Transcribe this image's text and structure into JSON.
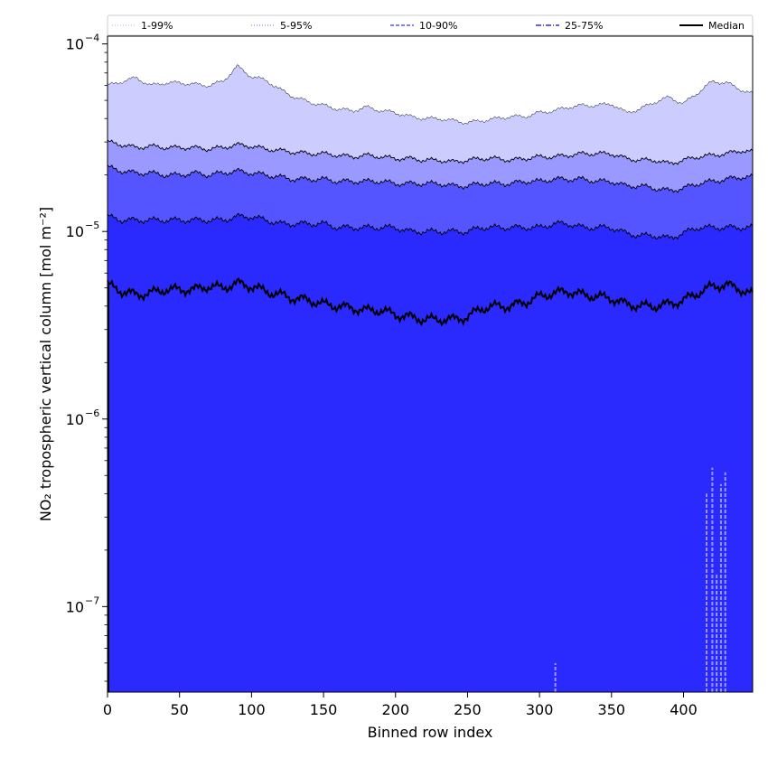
{
  "chart_data": {
    "type": "area",
    "xlabel": "Binned row index",
    "ylabel": "NO₂ tropospheric vertical column [mol m⁻²]",
    "xlim": [
      0,
      448
    ],
    "ylim": [
      3.5e-08,
      0.00011
    ],
    "yscale": "log",
    "x_ticks": [
      0,
      50,
      100,
      150,
      200,
      250,
      300,
      350,
      400
    ],
    "y_ticks": [
      {
        "value": 1e-07,
        "base": "10",
        "exp": "−7"
      },
      {
        "value": 1e-06,
        "base": "10",
        "exp": "−6"
      },
      {
        "value": 1e-05,
        "base": "10",
        "exp": "−5"
      },
      {
        "value": 0.0001,
        "base": "10",
        "exp": "−4"
      }
    ],
    "grid": false,
    "legend_position": "top (horizontal, above plot)",
    "x": [
      0,
      10,
      20,
      30,
      40,
      50,
      60,
      70,
      80,
      90,
      100,
      110,
      120,
      130,
      140,
      150,
      160,
      170,
      180,
      190,
      200,
      210,
      220,
      230,
      240,
      250,
      260,
      270,
      280,
      290,
      300,
      310,
      320,
      330,
      340,
      350,
      360,
      370,
      380,
      390,
      400,
      410,
      420,
      430,
      440,
      448
    ],
    "series": [
      {
        "name": "1-99%",
        "color": "#ccccff",
        "linestyle": "dotted",
        "upper": [
          6e-05,
          6.3e-05,
          6.6e-05,
          6e-05,
          6.2e-05,
          6.2e-05,
          6.1e-05,
          6e-05,
          6.3e-05,
          7.6e-05,
          6.7e-05,
          6.4e-05,
          5.7e-05,
          5.2e-05,
          4.9e-05,
          4.7e-05,
          4.5e-05,
          4.4e-05,
          4.6e-05,
          4.4e-05,
          4.3e-05,
          4.1e-05,
          4e-05,
          4e-05,
          3.9e-05,
          3.8e-05,
          3.9e-05,
          4e-05,
          4.1e-05,
          4.1e-05,
          4.3e-05,
          4.4e-05,
          4.6e-05,
          4.7e-05,
          4.7e-05,
          4.8e-05,
          4.3e-05,
          4.5e-05,
          4.9e-05,
          5.2e-05,
          4.8e-05,
          5.5e-05,
          6.3e-05,
          6.2e-05,
          5.7e-05,
          5.4e-05
        ]
      },
      {
        "name": "5-95%",
        "color": "#9999ff",
        "linestyle": "dotted",
        "upper": [
          3e-05,
          2.9e-05,
          2.8e-05,
          2.85e-05,
          2.8e-05,
          2.8e-05,
          2.8e-05,
          2.75e-05,
          2.8e-05,
          2.9e-05,
          2.85e-05,
          2.75e-05,
          2.7e-05,
          2.65e-05,
          2.6e-05,
          2.6e-05,
          2.55e-05,
          2.5e-05,
          2.55e-05,
          2.5e-05,
          2.45e-05,
          2.45e-05,
          2.4e-05,
          2.4e-05,
          2.35e-05,
          2.4e-05,
          2.45e-05,
          2.45e-05,
          2.4e-05,
          2.45e-05,
          2.5e-05,
          2.5e-05,
          2.55e-05,
          2.6e-05,
          2.6e-05,
          2.6e-05,
          2.45e-05,
          2.4e-05,
          2.4e-05,
          2.3e-05,
          2.4e-05,
          2.5e-05,
          2.55e-05,
          2.6e-05,
          2.7e-05,
          2.65e-05
        ]
      },
      {
        "name": "10-90%",
        "color": "#5555ff",
        "linestyle": "dashed",
        "upper": [
          2.2e-05,
          2.1e-05,
          2.05e-05,
          2.05e-05,
          2e-05,
          2e-05,
          2.05e-05,
          2e-05,
          2.05e-05,
          2.1e-05,
          2.05e-05,
          2e-05,
          1.95e-05,
          1.9e-05,
          1.9e-05,
          1.9e-05,
          1.85e-05,
          1.85e-05,
          1.85e-05,
          1.85e-05,
          1.8e-05,
          1.8e-05,
          1.8e-05,
          1.8e-05,
          1.75e-05,
          1.75e-05,
          1.8e-05,
          1.8e-05,
          1.8e-05,
          1.85e-05,
          1.85e-05,
          1.9e-05,
          1.9e-05,
          1.9e-05,
          1.85e-05,
          1.85e-05,
          1.75e-05,
          1.75e-05,
          1.7e-05,
          1.65e-05,
          1.7e-05,
          1.8e-05,
          1.85e-05,
          1.9e-05,
          1.95e-05,
          1.95e-05
        ]
      },
      {
        "name": "25-75%",
        "color": "#2a2aff",
        "linestyle": "dashdot",
        "upper": [
          1.2e-05,
          1.15e-05,
          1.15e-05,
          1.15e-05,
          1.15e-05,
          1.15e-05,
          1.15e-05,
          1.15e-05,
          1.15e-05,
          1.2e-05,
          1.2e-05,
          1.15e-05,
          1.1e-05,
          1.1e-05,
          1.1e-05,
          1.1e-05,
          1.05e-05,
          1.05e-05,
          1.05e-05,
          1.05e-05,
          1.05e-05,
          1e-05,
          1e-05,
          1e-05,
          1e-05,
          1e-05,
          1.05e-05,
          1.05e-05,
          1.05e-05,
          1.05e-05,
          1.05e-05,
          1.1e-05,
          1.1e-05,
          1.05e-05,
          1.05e-05,
          1.05e-05,
          9.8e-06,
          9.5e-06,
          9.5e-06,
          9.2e-06,
          9.8e-06,
          1.05e-05,
          1.05e-05,
          1.05e-05,
          1.05e-05,
          1.05e-05
        ]
      },
      {
        "name": "Median",
        "color": "#000000",
        "linestyle": "solid",
        "values": [
          5.2e-06,
          4.8e-06,
          4.6e-06,
          4.7e-06,
          4.9e-06,
          4.9e-06,
          4.9e-06,
          5.1e-06,
          5e-06,
          5.3e-06,
          5.1e-06,
          4.8e-06,
          4.6e-06,
          4.4e-06,
          4.3e-06,
          4.1e-06,
          4e-06,
          3.9e-06,
          3.8e-06,
          3.8e-06,
          3.6e-06,
          3.5e-06,
          3.4e-06,
          3.4e-06,
          3.4e-06,
          3.5e-06,
          3.9e-06,
          4e-06,
          4e-06,
          4.2e-06,
          4.5e-06,
          4.7e-06,
          4.8e-06,
          4.6e-06,
          4.5e-06,
          4.4e-06,
          4.1e-06,
          4e-06,
          4e-06,
          4.1e-06,
          4.3e-06,
          4.7e-06,
          5.1e-06,
          5.2e-06,
          4.9e-06,
          4.6e-06
        ]
      }
    ]
  }
}
